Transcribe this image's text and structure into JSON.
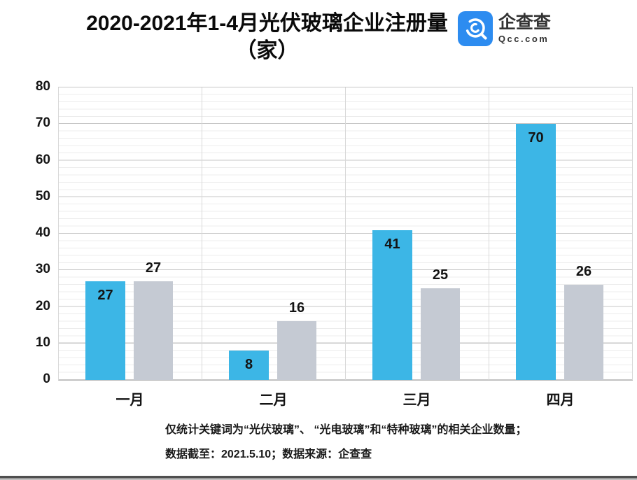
{
  "header": {
    "title_line1": "2020-2021年1-4月光伏玻璃企业注册量",
    "title_line2": "（家）",
    "logo": {
      "brand": "企查查",
      "domain": "Qcc.com",
      "icon": "qcc-magnifier-icon",
      "icon_color": "#2d8cf0"
    }
  },
  "footer": {
    "line1": "仅统计关键词为“光伏玻璃”、 “光电玻璃”和“特种玻璃”的相关企业数量；",
    "line2": "数据截至：2021.5.10；数据来源：企查查"
  },
  "colors": {
    "bar_blue": "#3cb6e6",
    "bar_gray": "#c5cad3",
    "grid_major": "#c7c7c7",
    "grid_minor": "#ececec"
  },
  "chart_data": {
    "type": "bar",
    "title": "2020-2021年1-4月光伏玻璃企业注册量（家）",
    "categories": [
      "一月",
      "二月",
      "三月",
      "四月"
    ],
    "series": [
      {
        "name": "blue-series",
        "color": "#3cb6e6",
        "values": [
          27,
          8,
          41,
          70
        ],
        "value_label_position": "inside-top"
      },
      {
        "name": "gray-series",
        "color": "#c5cad3",
        "values": [
          27,
          16,
          25,
          26
        ],
        "value_label_position": "above"
      }
    ],
    "ylim": [
      0,
      80
    ],
    "ytick_step": 10,
    "y_minor_step": 2,
    "ytick_labels": [
      "0",
      "10",
      "20",
      "30",
      "40",
      "50",
      "60",
      "70",
      "80"
    ],
    "grid": true,
    "legend": "none",
    "value_labels_shown": true
  }
}
